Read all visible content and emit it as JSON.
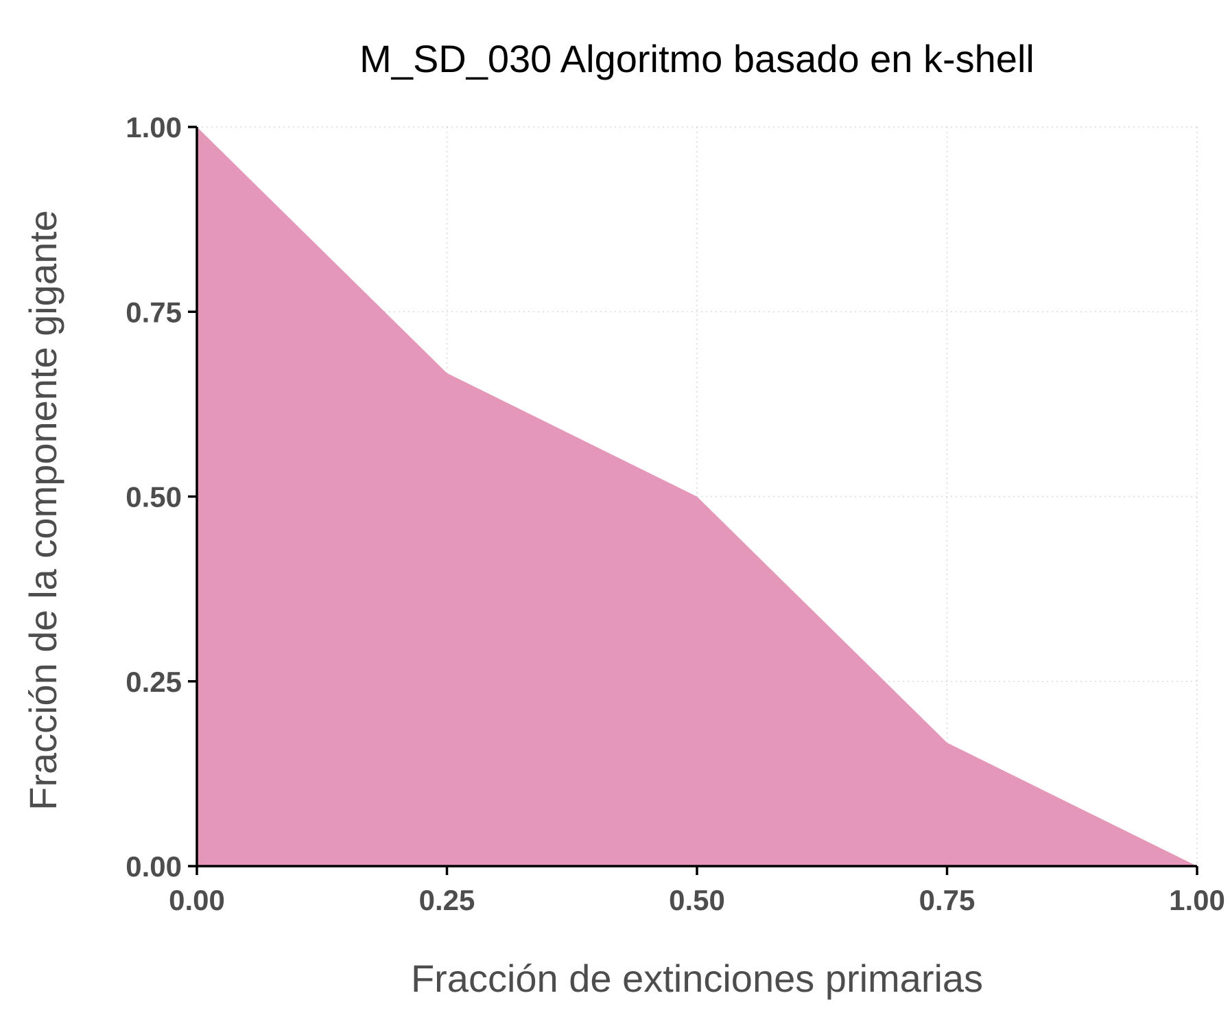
{
  "chart_data": {
    "type": "area",
    "title": "M_SD_030 Algoritmo basado en k-shell",
    "xlabel": "Fracción de extinciones primarias",
    "ylabel": "Fracción de la componente gigante",
    "x": [
      0.0,
      0.25,
      0.5,
      0.75,
      1.0
    ],
    "series": [
      {
        "values": [
          1.0,
          0.667,
          0.5,
          0.167,
          0.0
        ],
        "color": "#e597b9"
      }
    ],
    "xlim": [
      0,
      1
    ],
    "ylim": [
      0,
      1
    ],
    "x_ticks": [
      "0.00",
      "0.25",
      "0.50",
      "0.75",
      "1.00"
    ],
    "y_ticks": [
      "0.00",
      "0.25",
      "0.50",
      "0.75",
      "1.00"
    ],
    "grid": true,
    "legend": "none"
  }
}
